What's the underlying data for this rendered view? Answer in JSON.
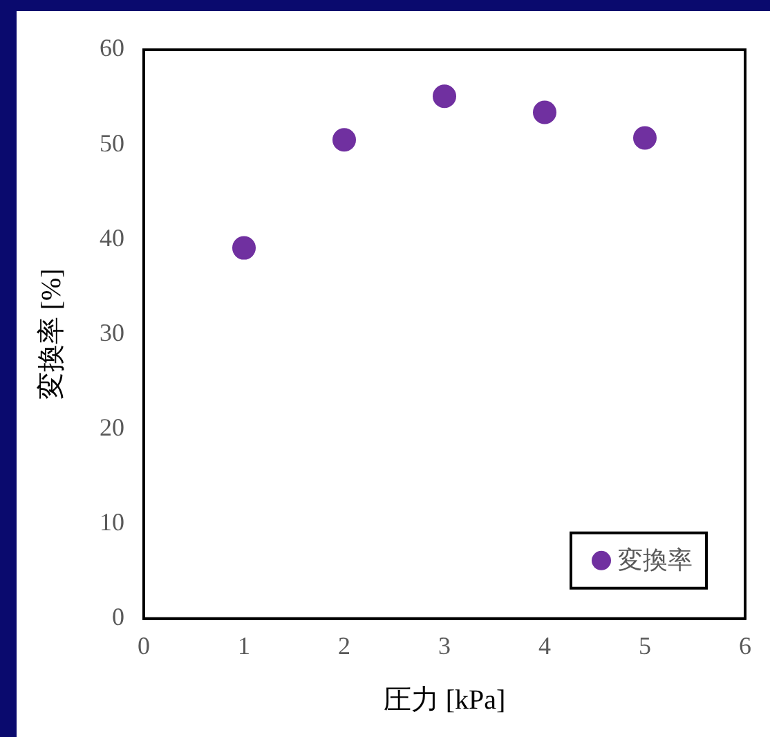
{
  "chart_data": {
    "type": "scatter",
    "xlabel": "圧力 [kPa]",
    "ylabel": "変換率 [%]",
    "x": [
      1,
      2,
      3,
      4,
      5
    ],
    "series": [
      {
        "name": "変換率",
        "color": "#7030a0",
        "values": [
          39.1,
          50.5,
          55.1,
          53.4,
          50.7
        ]
      }
    ],
    "xlim": [
      0,
      6
    ],
    "xticks": [
      0,
      1,
      2,
      3,
      4,
      5,
      6
    ],
    "ylim": [
      0,
      60
    ],
    "yticks": [
      0,
      10,
      20,
      30,
      40,
      50,
      60
    ],
    "grid": false,
    "legend": "bottom right",
    "marker": "circle"
  }
}
